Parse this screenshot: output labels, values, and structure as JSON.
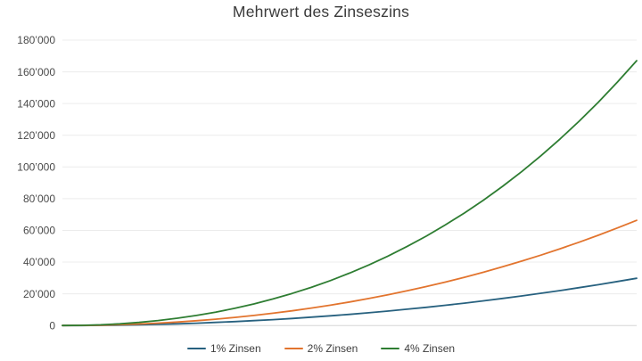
{
  "title": "Mehrwert des Zinseszins",
  "chart_data": {
    "type": "line",
    "title": "Mehrwert des Zinseszins",
    "xlabel": "",
    "ylabel": "",
    "ylim": [
      0,
      180000
    ],
    "y_tick_interval": 20000,
    "y_ticks": [
      0,
      20000,
      40000,
      60000,
      80000,
      100000,
      120000,
      140000,
      160000,
      180000
    ],
    "y_tick_labels": [
      "0",
      "20’000",
      "40’000",
      "60’000",
      "80’000",
      "100’000",
      "120’000",
      "140’000",
      "160’000",
      "180’000"
    ],
    "x": [
      0,
      1,
      2,
      3,
      4,
      5,
      6,
      7,
      8,
      9,
      10,
      11,
      12,
      13,
      14,
      15,
      16,
      17,
      18,
      19,
      20,
      21,
      22,
      23,
      24,
      25,
      26,
      27,
      28,
      29,
      30
    ],
    "x_range": [
      0,
      30
    ],
    "x_tick_labels": [],
    "grid": "horizontal",
    "grid_color": "#ececec",
    "axis_color": "#d6d6d6",
    "background_color": "#ffffff",
    "legend_position": "bottom-center",
    "series": [
      {
        "name": "1% Zinsen",
        "color": "#27617f",
        "values": [
          0,
          28,
          116,
          265,
          476,
          749,
          1086,
          1487,
          1951,
          2479,
          3074,
          3734,
          4462,
          5257,
          6121,
          7053,
          8055,
          9127,
          10271,
          11486,
          12773,
          14134,
          15569,
          17078,
          18664,
          20325,
          22062,
          23878,
          25771,
          27744,
          29797
        ]
      },
      {
        "name": "2% Zinsen",
        "color": "#e2742e",
        "values": [
          0,
          55,
          233,
          535,
          964,
          1523,
          2215,
          3041,
          4005,
          5110,
          6358,
          7753,
          9297,
          10993,
          12845,
          14855,
          17027,
          19363,
          21868,
          24545,
          27397,
          30427,
          33640,
          37039,
          40627,
          44409,
          48388,
          52569,
          56955,
          61551,
          66361
        ]
      },
      {
        "name": "4% Zinsen",
        "color": "#2e7d32",
        "values": [
          0,
          111,
          471,
          1091,
          1980,
          3150,
          4611,
          6377,
          8458,
          10869,
          13624,
          16736,
          20219,
          24087,
          28358,
          33048,
          38172,
          43749,
          49799,
          56339,
          63387,
          70971,
          79105,
          87816,
          97127,
          107062,
          117644,
          128903,
          140864,
          153558,
          167013
        ]
      }
    ]
  }
}
